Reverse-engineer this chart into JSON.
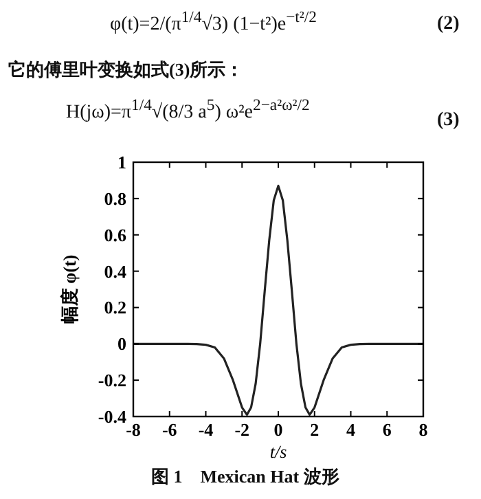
{
  "chart_data": {
    "type": "line",
    "xlabel": "t/s",
    "ylabel": "幅度 φ(t)",
    "annotations": [
      "φ(t)=2/(π$^{1/4}$√3) (1−t²)e$^{−t²/2}$",
      "(2)",
      "它的傅里叶变换如式(3)所示：",
      "H(jω)=π$^{1/4}$√(8/3 a$^{5}$) ω²e$^{2−a²ω²/2}$",
      "(3)",
      "图 1　Mexican Hat 波形"
    ],
    "x": [
      -8,
      -6,
      -5,
      -4.5,
      -4,
      -3.5,
      -3,
      -2.5,
      -2,
      -1.73,
      -1.5,
      -1.25,
      -1,
      -0.75,
      -0.5,
      -0.25,
      0,
      0.25,
      0.5,
      0.75,
      1,
      1.25,
      1.5,
      1.73,
      2,
      2.5,
      3,
      3.5,
      4,
      4.5,
      5,
      6,
      8
    ],
    "series": [
      {
        "color": "#222222",
        "values": [
          0,
          0,
          0,
          -0.001,
          -0.005,
          -0.02,
          -0.08,
          -0.2,
          -0.35,
          -0.39,
          -0.35,
          -0.22,
          0,
          0.29,
          0.57,
          0.79,
          0.87,
          0.79,
          0.57,
          0.29,
          0,
          -0.22,
          -0.35,
          -0.39,
          -0.35,
          -0.2,
          -0.08,
          -0.02,
          -0.005,
          -0.001,
          0,
          0,
          0
        ]
      }
    ],
    "xlim": [
      -8,
      8
    ],
    "ylim": [
      -0.4,
      1
    ],
    "xticks": [
      -8,
      -6,
      -4,
      -2,
      0,
      2,
      4,
      6,
      8
    ],
    "yticks": [
      -0.4,
      -0.2,
      0,
      0.2,
      0.4,
      0.6,
      0.8,
      1
    ],
    "grid": false,
    "line_style": "solid",
    "marker": "none"
  }
}
